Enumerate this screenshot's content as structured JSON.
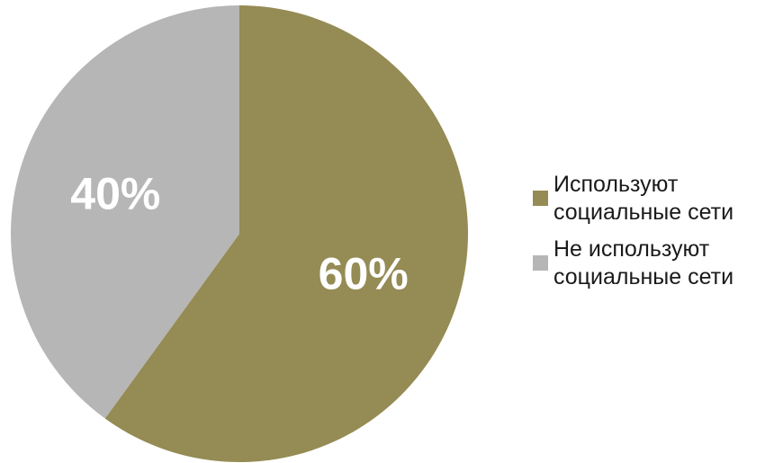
{
  "chart_data": {
    "type": "pie",
    "title": "",
    "slices": [
      {
        "label": "Используют социальные сети",
        "legend_lines": [
          "Используют",
          "социальные сети"
        ],
        "value": 60,
        "display": "60%",
        "color": "#958B54"
      },
      {
        "label": "Не используют социальные сети",
        "legend_lines": [
          "Не используют",
          "социальные сети"
        ],
        "value": 40,
        "display": "40%",
        "color": "#B6B6B6"
      }
    ],
    "legend_position": "right",
    "start_angle": "12 o'clock",
    "direction": "clockwise"
  }
}
